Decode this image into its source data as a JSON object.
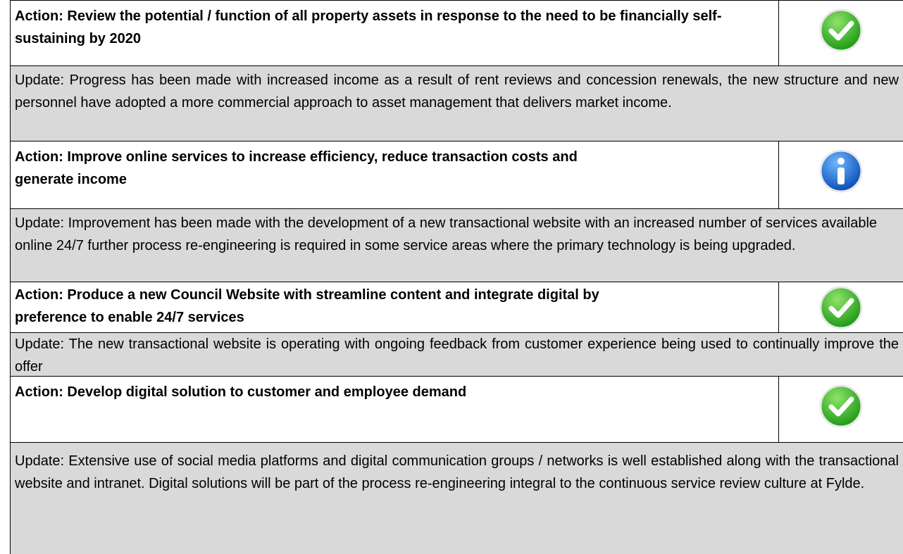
{
  "rows": [
    {
      "action": "Action: Review the potential / function of all property assets in response to the need to be financially self-sustaining by 2020",
      "update": "Update: Progress has been made with increased income as a result of rent reviews and concession renewals, the new structure and new personnel have adopted a more commercial approach to asset management that delivers market income."
    },
    {
      "action": "Action: Improve online services to increase efficiency, reduce transaction costs and generate income",
      "update": "Update: Improvement has been made with the development of a new transactional website with an increased number of services available online 24/7 further process re-engineering is required in some service areas where the primary technology is being upgraded."
    },
    {
      "action": "Action: Produce a new Council Website with streamline content and integrate digital by preference to enable 24/7 services",
      "update": "Update: The new transactional website is operating with ongoing feedback from customer experience being used to continually improve the offer"
    },
    {
      "action": "Action: Develop digital solution to customer and employee demand",
      "update": "Update: Extensive use of social media platforms and digital communication groups / networks is well established along with the transactional website and intranet.  Digital solutions will be part of the process re-engineering integral to the continuous service review culture at Fylde."
    }
  ]
}
